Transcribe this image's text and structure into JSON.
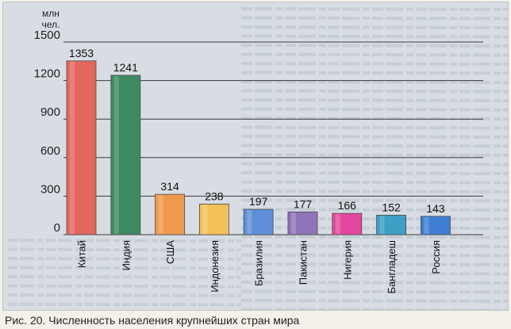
{
  "chart_data": {
    "type": "bar",
    "unit_label": [
      "млн",
      "чел."
    ],
    "yticks": [
      0,
      300,
      600,
      900,
      1200,
      1500
    ],
    "ylim": [
      0,
      1500
    ],
    "grid": true,
    "categories": [
      "Китай",
      "Индия",
      "США",
      "Индонезия",
      "Бразилия",
      "Пакистан",
      "Нигерия",
      "Бангладеш",
      "Россия"
    ],
    "values": [
      1353,
      1241,
      314,
      238,
      197,
      177,
      166,
      152,
      143
    ],
    "colors": [
      "#e2685f",
      "#3d8a62",
      "#ee9a4e",
      "#f3c15a",
      "#5f8fd6",
      "#8f74b8",
      "#e3489c",
      "#3d9fc4",
      "#3f7fd3"
    ]
  },
  "caption": "Рис. 20. Численность населения крупнейших стран мира"
}
